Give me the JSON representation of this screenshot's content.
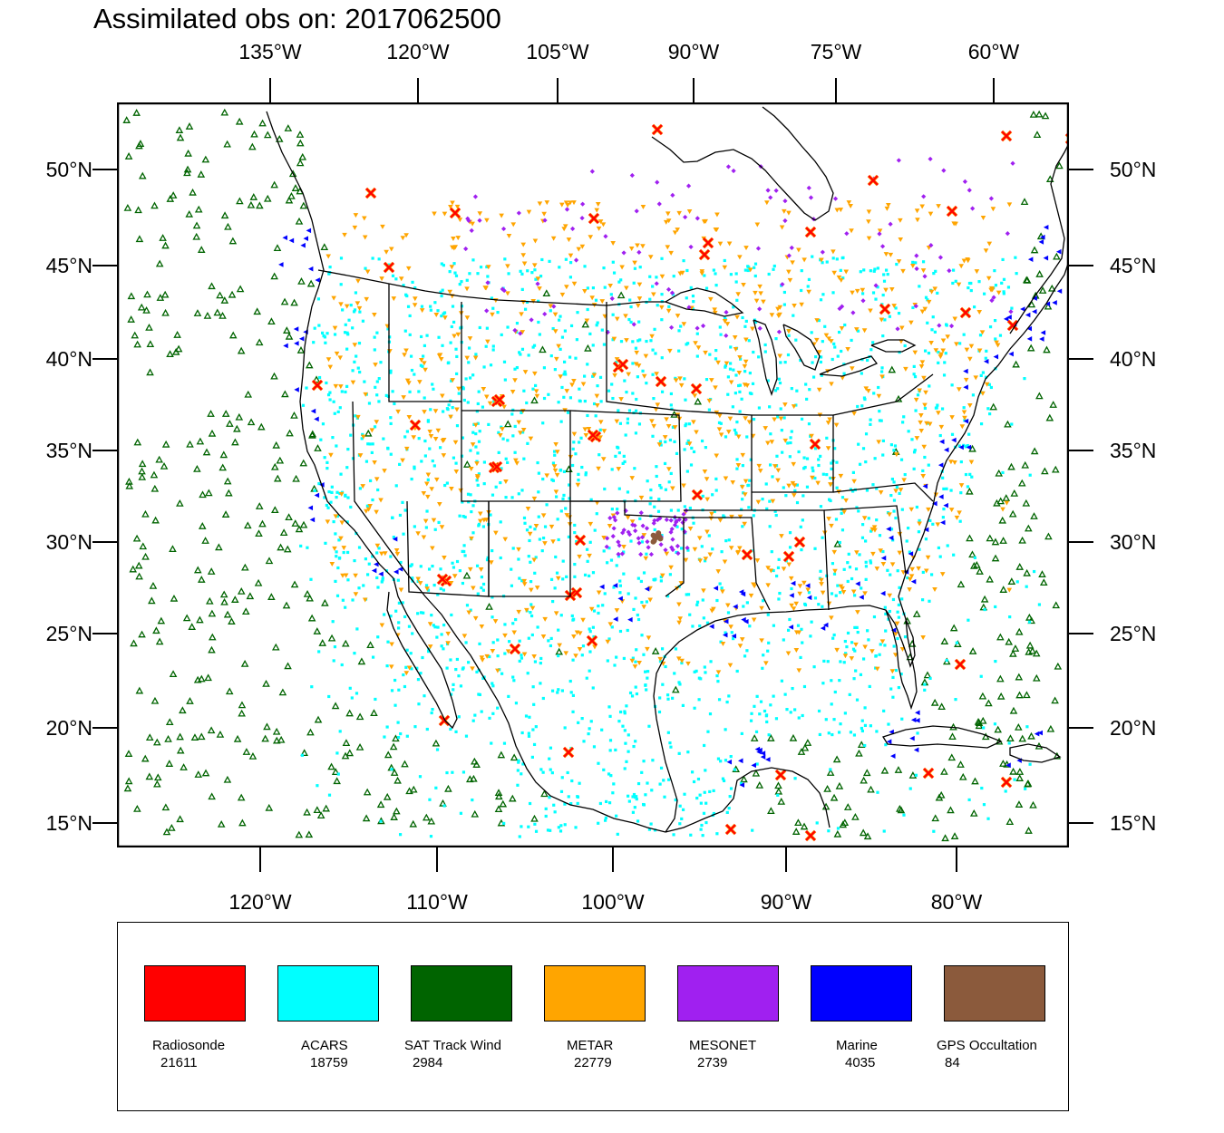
{
  "title": "Assimilated obs on: 2017062500",
  "axes": {
    "top_lon": [
      "135°W",
      "120°W",
      "105°W",
      "90°W",
      "75°W",
      "60°W"
    ],
    "bottom_lon": [
      "120°W",
      "110°W",
      "100°W",
      "90°W",
      "80°W"
    ],
    "left_lat": [
      "50°N",
      "45°N",
      "40°N",
      "35°N",
      "30°N",
      "25°N",
      "20°N",
      "15°N"
    ],
    "right_lat": [
      "50°N",
      "45°N",
      "40°N",
      "35°N",
      "30°N",
      "25°N",
      "20°N",
      "15°N"
    ]
  },
  "legend": [
    {
      "name": "Radiosonde",
      "count": "21611",
      "color": "#ff0000"
    },
    {
      "name": "ACARS",
      "count": "18759",
      "color": "#00ffff"
    },
    {
      "name": "SAT Track Wind",
      "count": "2984",
      "color": "#006400"
    },
    {
      "name": "METAR",
      "count": "22779",
      "color": "#ffa500"
    },
    {
      "name": "MESONET",
      "count": "2739",
      "color": "#a020f0"
    },
    {
      "name": "Marine",
      "count": "4035",
      "color": "#0000ff"
    },
    {
      "name": "GPS Occultation",
      "count": "84",
      "color": "#8b5a3c"
    }
  ],
  "map_colors": {
    "radiosonde": "#ff0000",
    "radiosonde_outline": "#ff8c00",
    "acars": "#00ffff",
    "sat_track_wind": "#006400",
    "metar": "#ffa500",
    "mesonet": "#a020f0",
    "marine": "#0000ff",
    "gps_occultation": "#8b5a3c",
    "boundaries": "#000000"
  }
}
